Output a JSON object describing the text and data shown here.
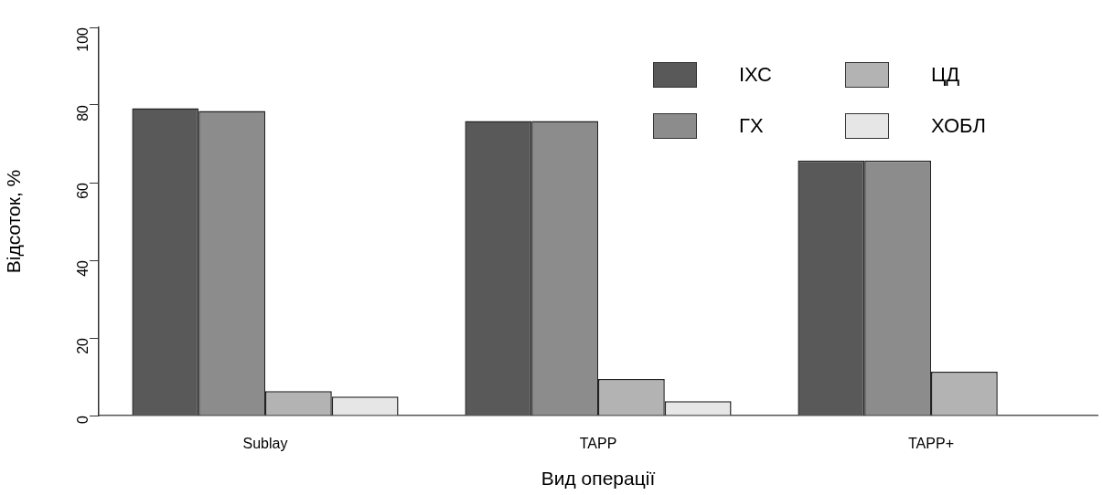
{
  "chart_data": {
    "type": "bar",
    "xlabel": "Вид операції",
    "ylabel": "Відсоток, %",
    "categories": [
      "Sublay",
      "TAPP",
      "TAPP+"
    ],
    "series": [
      {
        "name": "ІХС",
        "color": "#595959",
        "values": [
          79.2,
          75.9,
          65.7
        ]
      },
      {
        "name": "ГХ",
        "color": "#8c8c8c",
        "values": [
          78.5,
          75.9,
          65.7
        ]
      },
      {
        "name": "ЦД",
        "color": "#b3b3b3",
        "values": [
          6.3,
          9.4,
          11.3
        ]
      },
      {
        "name": "ХОБЛ",
        "color": "#e6e6e6",
        "values": [
          4.9,
          3.7,
          0
        ]
      }
    ],
    "ylim": [
      0,
      100
    ],
    "yticks": [
      0,
      20,
      40,
      60,
      80,
      100
    ],
    "grid": false,
    "legend": "top right"
  }
}
